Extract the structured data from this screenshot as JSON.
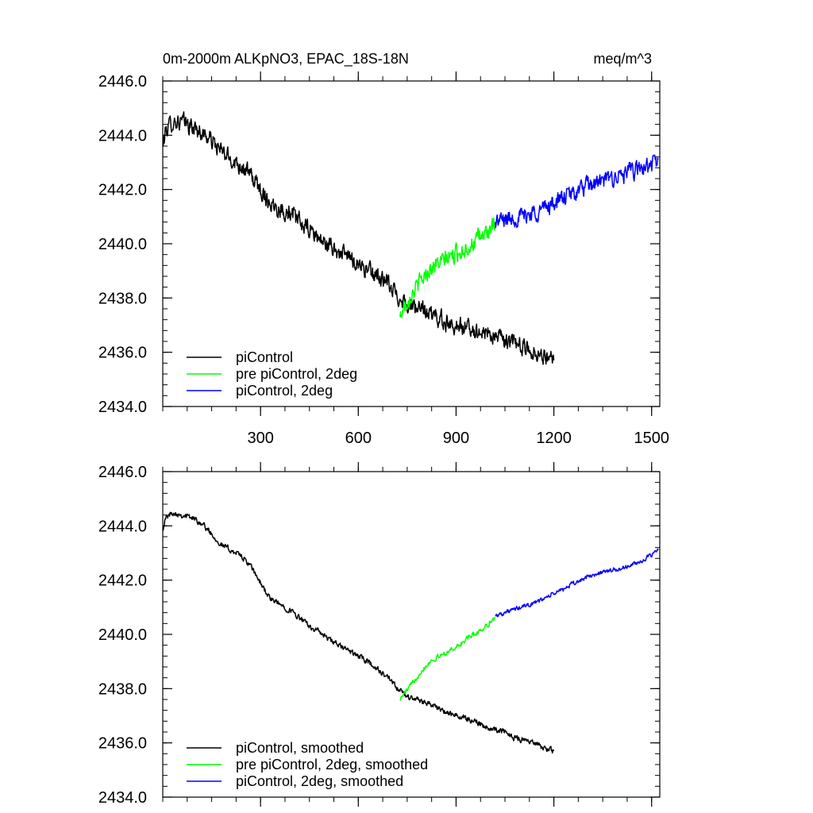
{
  "chart_data": [
    {
      "type": "line",
      "title": "0m-2000m ALKpNO3, EPAC_18S-18N",
      "units": "meq/m^3",
      "xlabel": "",
      "ylabel": "",
      "xlim": [
        0,
        1525
      ],
      "ylim": [
        2434.0,
        2446.0
      ],
      "xticks": [
        300,
        600,
        900,
        1200,
        1500
      ],
      "xtick_labels": [
        "300",
        "600",
        "900",
        "1200",
        "1500"
      ],
      "yticks": [
        2434.0,
        2436.0,
        2438.0,
        2440.0,
        2442.0,
        2444.0,
        2446.0
      ],
      "ytick_labels": [
        "2434.0",
        "2436.0",
        "2438.0",
        "2440.0",
        "2442.0",
        "2444.0",
        "2446.0"
      ],
      "legend_position": "bottom-left",
      "series": [
        {
          "name": "piControl",
          "color": "#000000",
          "noise": 0.55,
          "x": [
            0,
            10,
            30,
            60,
            90,
            120,
            150,
            180,
            210,
            240,
            270,
            300,
            330,
            360,
            390,
            420,
            450,
            480,
            510,
            540,
            570,
            600,
            630,
            660,
            690,
            720,
            750,
            780,
            810,
            840,
            870,
            900,
            930,
            960,
            990,
            1020,
            1050,
            1080,
            1110,
            1140,
            1170,
            1200
          ],
          "values": [
            2443.6,
            2444.2,
            2444.5,
            2444.5,
            2444.3,
            2444.1,
            2443.8,
            2443.4,
            2443.1,
            2442.9,
            2442.5,
            2442.0,
            2441.5,
            2441.3,
            2441.1,
            2440.8,
            2440.5,
            2440.2,
            2439.9,
            2439.7,
            2439.5,
            2439.3,
            2439.0,
            2438.8,
            2438.5,
            2438.1,
            2437.8,
            2437.6,
            2437.5,
            2437.3,
            2437.1,
            2437.0,
            2436.9,
            2436.8,
            2436.7,
            2436.6,
            2436.4,
            2436.3,
            2436.2,
            2436.0,
            2435.9,
            2435.7
          ]
        },
        {
          "name": "pre piControl, 2deg",
          "color": "#00ff00",
          "noise": 0.55,
          "x": [
            728,
            740,
            760,
            790,
            820,
            850,
            880,
            910,
            940,
            970,
            1000,
            1020
          ],
          "values": [
            2437.3,
            2437.7,
            2438.1,
            2438.6,
            2439.1,
            2439.3,
            2439.5,
            2439.7,
            2439.9,
            2440.2,
            2440.5,
            2440.6
          ]
        },
        {
          "name": "piControl, 2deg",
          "color": "#0000ff",
          "noise": 0.55,
          "x": [
            1020,
            1050,
            1100,
            1150,
            1200,
            1250,
            1300,
            1350,
            1400,
            1450,
            1500,
            1520
          ],
          "values": [
            2440.8,
            2440.9,
            2441.0,
            2441.2,
            2441.5,
            2441.8,
            2442.1,
            2442.3,
            2442.5,
            2442.7,
            2442.9,
            2443.1
          ]
        }
      ]
    },
    {
      "type": "line",
      "title": "",
      "units": "",
      "xlabel": "",
      "ylabel": "",
      "xlim": [
        0,
        1525
      ],
      "ylim": [
        2434.0,
        2446.0
      ],
      "xticks": [
        300,
        600,
        900,
        1200,
        1500
      ],
      "xtick_labels": [],
      "yticks": [
        2434.0,
        2436.0,
        2438.0,
        2440.0,
        2442.0,
        2444.0,
        2446.0
      ],
      "ytick_labels": [
        "2434.0",
        "2436.0",
        "2438.0",
        "2440.0",
        "2442.0",
        "2444.0",
        "2446.0"
      ],
      "legend_position": "bottom-left",
      "series": [
        {
          "name": "piControl, smoothed",
          "color": "#000000",
          "noise": 0.18,
          "x": [
            0,
            10,
            30,
            60,
            90,
            120,
            150,
            180,
            210,
            240,
            270,
            300,
            330,
            360,
            390,
            420,
            450,
            480,
            510,
            540,
            570,
            600,
            630,
            660,
            690,
            720,
            750,
            780,
            810,
            840,
            870,
            900,
            930,
            960,
            990,
            1020,
            1050,
            1080,
            1110,
            1140,
            1170,
            1200
          ],
          "values": [
            2443.9,
            2444.3,
            2444.5,
            2444.4,
            2444.3,
            2444.1,
            2443.7,
            2443.3,
            2443.1,
            2442.9,
            2442.5,
            2441.9,
            2441.3,
            2441.1,
            2440.9,
            2440.6,
            2440.3,
            2440.1,
            2439.8,
            2439.6,
            2439.4,
            2439.2,
            2439.0,
            2438.7,
            2438.4,
            2438.0,
            2437.7,
            2437.6,
            2437.5,
            2437.3,
            2437.1,
            2437.0,
            2436.9,
            2436.8,
            2436.6,
            2436.5,
            2436.4,
            2436.2,
            2436.1,
            2436.0,
            2435.8,
            2435.7
          ]
        },
        {
          "name": "pre piControl, 2deg, smoothed",
          "color": "#00ff00",
          "noise": 0.16,
          "x": [
            728,
            740,
            760,
            790,
            820,
            850,
            880,
            910,
            940,
            970,
            1000,
            1020
          ],
          "values": [
            2437.6,
            2437.8,
            2438.1,
            2438.6,
            2439.0,
            2439.2,
            2439.4,
            2439.6,
            2439.9,
            2440.1,
            2440.4,
            2440.6
          ]
        },
        {
          "name": "piControl, 2deg, smoothed",
          "color": "#0000ff",
          "noise": 0.14,
          "x": [
            1020,
            1050,
            1100,
            1150,
            1200,
            1250,
            1300,
            1350,
            1400,
            1450,
            1500,
            1520
          ],
          "values": [
            2440.7,
            2440.8,
            2441.0,
            2441.2,
            2441.5,
            2441.8,
            2442.1,
            2442.3,
            2442.4,
            2442.6,
            2442.9,
            2443.1
          ]
        }
      ]
    }
  ]
}
